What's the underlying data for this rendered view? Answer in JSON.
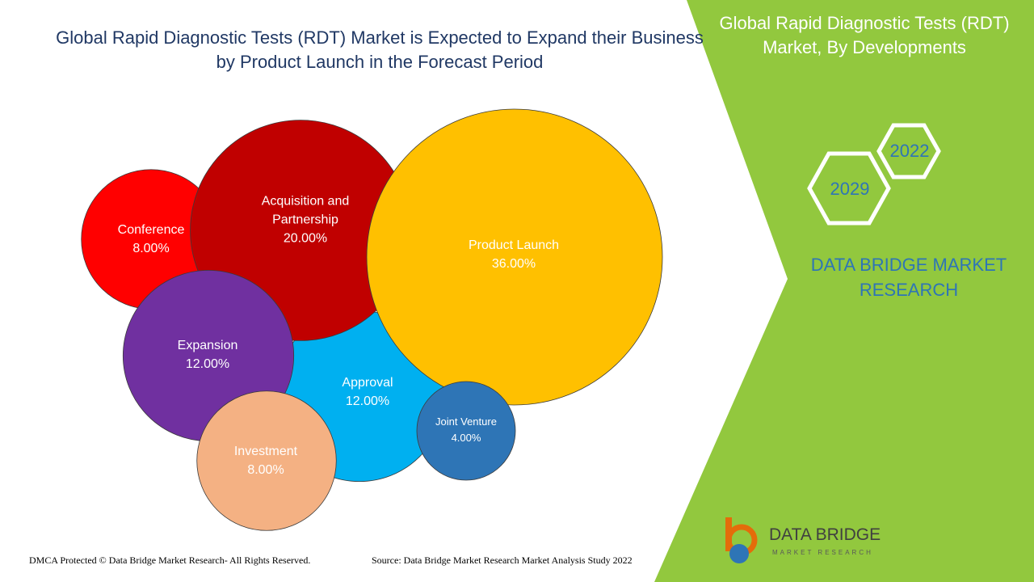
{
  "chart_data": {
    "type": "bubble",
    "title": "Global Rapid Diagnostic Tests (RDT) Market is Expected to Expand their Business by Product Launch in the Forecast Period",
    "categories": [
      "Approval",
      "Conference",
      "Acquisition and Partnership",
      "Product Launch",
      "Expansion",
      "Investment",
      "Joint Venture"
    ],
    "values": [
      12,
      8,
      20,
      36,
      12,
      8,
      4
    ],
    "value_labels": [
      "12.00%",
      "8.00%",
      "20.00%",
      "36.00%",
      "12.00%",
      "8.00%",
      "4.00%"
    ],
    "colors": [
      "#00b0f0",
      "#ff0000",
      "#c00000",
      "#ffc000",
      "#7030a0",
      "#f4b183",
      "#2e75b6"
    ]
  },
  "panel": {
    "title": "Global Rapid Diagnostic Tests (RDT) Market, By Developments",
    "years": [
      "2022",
      "2029"
    ],
    "brand": "DATA BRIDGE MARKET RESEARCH"
  },
  "footer": {
    "left": "DMCA Protected © Data Bridge Market Research- All Rights Reserved.",
    "right": "Source: Data Bridge Market Research Market Analysis Study 2022"
  },
  "logo": {
    "name": "DATA BRIDGE",
    "tagline": "MARKET RESEARCH"
  }
}
